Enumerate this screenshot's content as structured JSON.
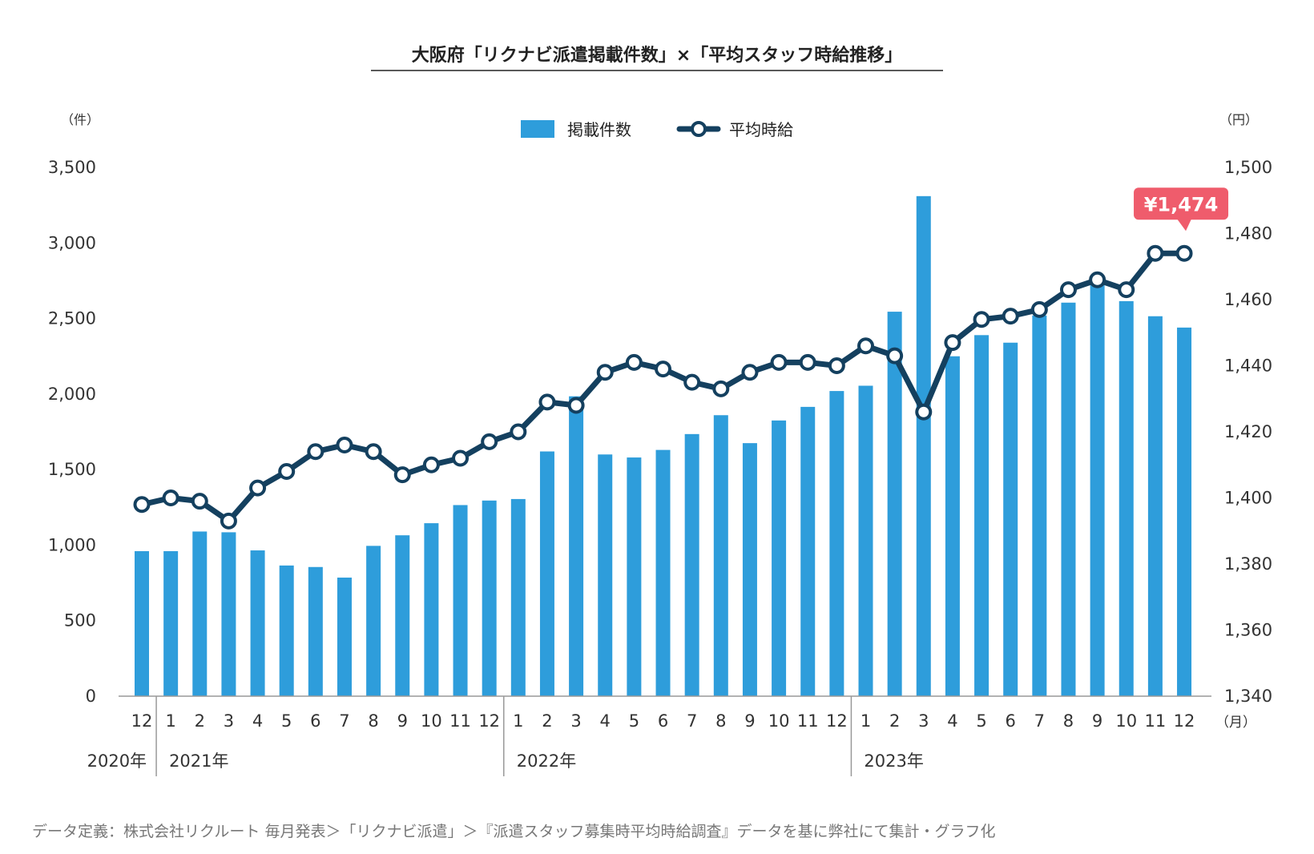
{
  "chart_data": {
    "type": "bar+line",
    "title": "大阪府「リクナビ派遣掲載件数」×「平均スタッフ時給推移」",
    "y_left_unit": "（件）",
    "y_right_unit": "（円）",
    "x_unit": "（月）",
    "ylim_left": [
      0,
      3500
    ],
    "ylim_right": [
      1340,
      1500
    ],
    "y_left_ticks": [
      0,
      500,
      1000,
      1500,
      2000,
      2500,
      3000,
      3500
    ],
    "y_left_tick_labels": [
      "0",
      "500",
      "1,000",
      "1,500",
      "2,000",
      "2,500",
      "3,000",
      "3,500"
    ],
    "y_right_ticks": [
      1340,
      1360,
      1380,
      1400,
      1420,
      1440,
      1460,
      1480,
      1500
    ],
    "y_right_tick_labels": [
      "1,340",
      "1,360",
      "1,380",
      "1,400",
      "1,420",
      "1,440",
      "1,460",
      "1,480",
      "1,500"
    ],
    "categories": [
      "12",
      "1",
      "2",
      "3",
      "4",
      "5",
      "6",
      "7",
      "8",
      "9",
      "10",
      "11",
      "12",
      "1",
      "2",
      "3",
      "4",
      "5",
      "6",
      "7",
      "8",
      "9",
      "10",
      "11",
      "12",
      "1",
      "2",
      "3",
      "4",
      "5",
      "6",
      "7",
      "8",
      "9",
      "10",
      "11",
      "12"
    ],
    "year_groups": [
      {
        "label": "2020年",
        "start": 0
      },
      {
        "label": "2021年",
        "start": 1
      },
      {
        "label": "2022年",
        "start": 13
      },
      {
        "label": "2023年",
        "start": 25
      }
    ],
    "legend": {
      "bar": "掲載件数",
      "line": "平均時給",
      "placement": "top-center"
    },
    "series": [
      {
        "name": "掲載件数",
        "type": "bar",
        "axis": "left",
        "color": "#2e9ddb",
        "values": [
          960,
          960,
          1090,
          1085,
          965,
          865,
          855,
          785,
          995,
          1065,
          1145,
          1265,
          1295,
          1305,
          1620,
          1985,
          1600,
          1580,
          1630,
          1735,
          1860,
          1675,
          1825,
          1915,
          2020,
          2055,
          2545,
          3310,
          2250,
          2390,
          2340,
          2520,
          2605,
          2740,
          2615,
          2515,
          2440
        ]
      },
      {
        "name": "平均時給",
        "type": "line",
        "axis": "right",
        "color": "#14405f",
        "values": [
          1398,
          1400,
          1399,
          1393,
          1403,
          1408,
          1414,
          1416,
          1414,
          1407,
          1410,
          1412,
          1417,
          1420,
          1429,
          1428,
          1438,
          1441,
          1439,
          1435,
          1433,
          1438,
          1441,
          1441,
          1440,
          1446,
          1443,
          1426,
          1447,
          1454,
          1455,
          1457,
          1463,
          1466,
          1463,
          1474,
          1474
        ]
      }
    ],
    "callout": {
      "label": "¥1,474",
      "index": 36,
      "color": "#ef5c6c"
    },
    "grid": false
  },
  "footnote": "データ定義：株式会社リクルート 毎月発表＞「リクナビ派遣」＞『派遣スタッフ募集時平均時給調査』データを基に弊社にて集計・グラフ化"
}
